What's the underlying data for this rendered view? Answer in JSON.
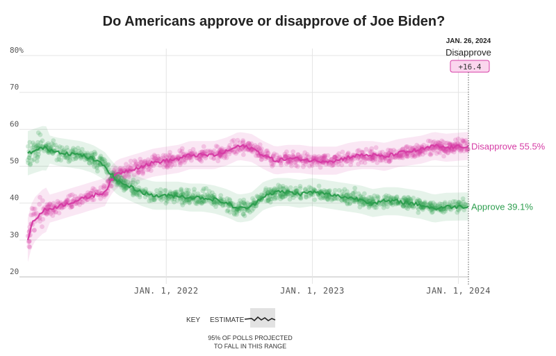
{
  "chart_data": {
    "type": "scatter",
    "title": "Do Americans approve or disapprove of Joe Biden?",
    "y_ticks": [
      "80%",
      "70",
      "60",
      "50",
      "40",
      "30",
      "20"
    ],
    "y_tick_values": [
      80,
      70,
      60,
      50,
      40,
      30,
      20
    ],
    "ylim": [
      20,
      80
    ],
    "x_ticks": [
      "JAN. 1, 2022",
      "JAN. 1, 2023",
      "JAN. 1, 2024"
    ],
    "x_tick_values": [
      "2022-01-01",
      "2023-01-01",
      "2024-01-01"
    ],
    "xlim": [
      "2021-01-20",
      "2024-01-26"
    ],
    "grid": true,
    "series": [
      {
        "name": "Disapprove",
        "color": "#d63ca5",
        "end_label": "Disapprove 55.5%",
        "x": [
          "2021-01-20",
          "2021-02-01",
          "2021-03-01",
          "2021-04-01",
          "2021-05-01",
          "2021-06-01",
          "2021-07-01",
          "2021-08-01",
          "2021-08-15",
          "2021-09-01",
          "2021-10-01",
          "2021-11-01",
          "2021-12-01",
          "2022-01-01",
          "2022-02-01",
          "2022-03-01",
          "2022-04-01",
          "2022-05-01",
          "2022-06-01",
          "2022-07-01",
          "2022-08-01",
          "2022-09-01",
          "2022-10-01",
          "2022-11-01",
          "2022-12-01",
          "2023-01-01",
          "2023-02-01",
          "2023-03-01",
          "2023-04-01",
          "2023-05-01",
          "2023-06-01",
          "2023-07-01",
          "2023-08-01",
          "2023-09-01",
          "2023-10-01",
          "2023-11-01",
          "2023-12-01",
          "2024-01-26"
        ],
        "values": [
          30,
          35,
          38,
          39,
          40,
          41,
          42,
          43,
          46,
          48,
          49,
          50,
          51,
          51.5,
          52,
          53,
          53,
          53,
          54,
          55.5,
          55,
          53,
          51.5,
          52,
          52,
          51.5,
          51.5,
          51.5,
          52.5,
          53,
          53,
          52.5,
          53.5,
          54,
          54.5,
          55.5,
          55,
          55.5
        ]
      },
      {
        "name": "Approve",
        "color": "#2e9e4f",
        "end_label": "Approve 39.1%",
        "x": [
          "2021-01-20",
          "2021-02-01",
          "2021-03-01",
          "2021-04-01",
          "2021-05-01",
          "2021-06-01",
          "2021-07-01",
          "2021-08-01",
          "2021-08-15",
          "2021-09-01",
          "2021-10-01",
          "2021-11-01",
          "2021-12-01",
          "2022-01-01",
          "2022-02-01",
          "2022-03-01",
          "2022-04-01",
          "2022-05-01",
          "2022-06-01",
          "2022-07-01",
          "2022-08-01",
          "2022-09-01",
          "2022-10-01",
          "2022-11-01",
          "2022-12-01",
          "2023-01-01",
          "2023-02-01",
          "2023-03-01",
          "2023-04-01",
          "2023-05-01",
          "2023-06-01",
          "2023-07-01",
          "2023-08-01",
          "2023-09-01",
          "2023-10-01",
          "2023-11-01",
          "2023-12-01",
          "2024-01-26"
        ],
        "values": [
          53.5,
          54,
          55,
          54,
          53.5,
          53,
          52,
          50,
          48,
          46,
          44.5,
          43,
          42,
          42,
          42,
          41.5,
          41.5,
          41,
          40,
          38.5,
          39,
          42,
          43,
          43,
          42.5,
          43,
          42.5,
          42,
          41.5,
          41,
          40,
          40.5,
          40.5,
          40,
          39.5,
          38.5,
          39,
          39.1
        ]
      }
    ],
    "highlight": {
      "date": "JAN. 26, 2024",
      "name": "Disapprove",
      "value": "+16.4"
    },
    "key": {
      "label": "KEY",
      "estimate": "ESTIMATE",
      "range_line1": "95% OF POLLS PROJECTED",
      "range_line2": "TO FALL IN THIS RANGE"
    }
  }
}
